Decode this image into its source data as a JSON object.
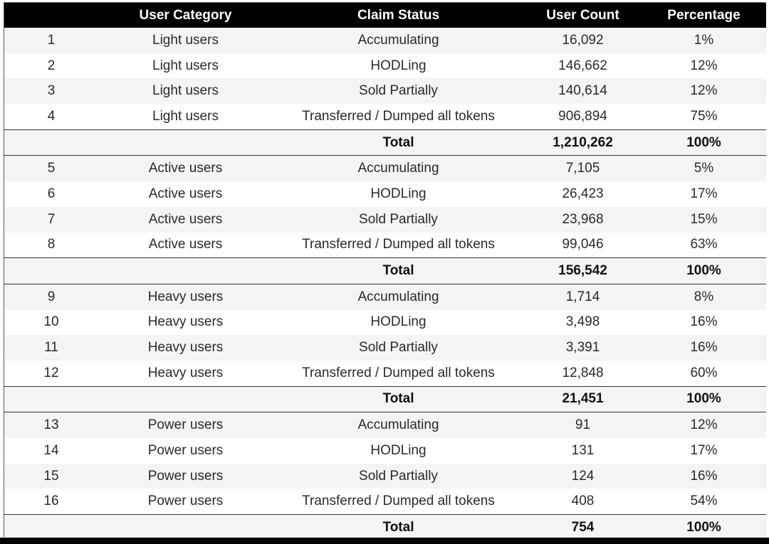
{
  "table": {
    "headers": [
      "",
      "User Category",
      "Claim Status",
      "User Count",
      "Percentage"
    ],
    "groups": [
      {
        "rows": [
          [
            "1",
            "Light users",
            "Accumulating",
            "16,092",
            "1%"
          ],
          [
            "2",
            "Light users",
            "HODLing",
            "146,662",
            "12%"
          ],
          [
            "3",
            "Light users",
            "Sold Partially",
            "140,614",
            "12%"
          ],
          [
            "4",
            "Light users",
            "Transferred / Dumped all tokens",
            "906,894",
            "75%"
          ]
        ],
        "total": {
          "label": "Total",
          "count": "1,210,262",
          "percentage": "100%"
        }
      },
      {
        "rows": [
          [
            "5",
            "Active users",
            "Accumulating",
            "7,105",
            "5%"
          ],
          [
            "6",
            "Active users",
            "HODLing",
            "26,423",
            "17%"
          ],
          [
            "7",
            "Active users",
            "Sold Partially",
            "23,968",
            "15%"
          ],
          [
            "8",
            "Active users",
            "Transferred / Dumped all tokens",
            "99,046",
            "63%"
          ]
        ],
        "total": {
          "label": "Total",
          "count": "156,542",
          "percentage": "100%"
        }
      },
      {
        "rows": [
          [
            "9",
            "Heavy users",
            "Accumulating",
            "1,714",
            "8%"
          ],
          [
            "10",
            "Heavy users",
            "HODLing",
            "3,498",
            "16%"
          ],
          [
            "11",
            "Heavy users",
            "Sold Partially",
            "3,391",
            "16%"
          ],
          [
            "12",
            "Heavy users",
            "Transferred / Dumped all tokens",
            "12,848",
            "60%"
          ]
        ],
        "total": {
          "label": "Total",
          "count": "21,451",
          "percentage": "100%"
        }
      },
      {
        "rows": [
          [
            "13",
            "Power users",
            "Accumulating",
            "91",
            "12%"
          ],
          [
            "14",
            "Power users",
            "HODLing",
            "131",
            "17%"
          ],
          [
            "15",
            "Power users",
            "Sold Partially",
            "124",
            "16%"
          ],
          [
            "16",
            "Power users",
            "Transferred / Dumped all tokens",
            "408",
            "54%"
          ]
        ],
        "total": {
          "label": "Total",
          "count": "754",
          "percentage": "100%"
        }
      }
    ]
  }
}
